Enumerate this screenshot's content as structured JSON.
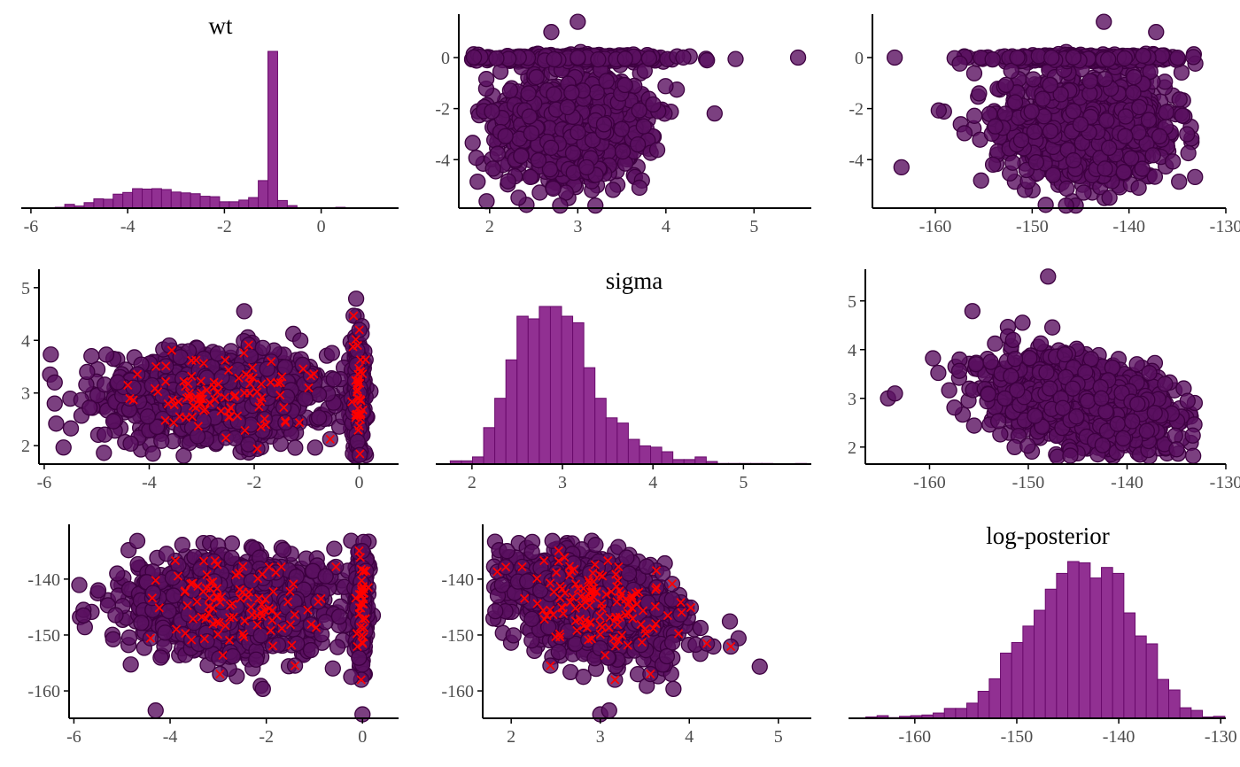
{
  "chart_data": [
    {
      "panel": "wt-hist",
      "row": 0,
      "col": 0,
      "type": "histogram",
      "title": "wt",
      "xlim": [
        -6.2,
        1.6
      ],
      "xticks": [
        -6,
        -4,
        -2,
        0
      ],
      "bin_start": -5.9,
      "bin_width": 0.2,
      "counts": [
        1,
        1,
        2,
        9,
        5,
        13,
        22,
        21,
        33,
        37,
        46,
        45,
        46,
        44,
        38,
        36,
        34,
        28,
        27,
        15,
        15,
        19,
        25,
        65,
        370,
        18,
        6,
        1,
        1,
        1,
        1,
        2
      ]
    },
    {
      "panel": "sigma-vs-wt-scatter",
      "row": 0,
      "col": 1,
      "type": "scatter",
      "x_param": "sigma",
      "y_param": "wt",
      "xlim": [
        1.65,
        5.65
      ],
      "ylim": [
        -5.9,
        1.7
      ],
      "xticks": [
        2,
        3,
        4,
        5
      ],
      "yticks": [
        -4,
        -2,
        0
      ]
    },
    {
      "panel": "logpost-vs-wt-scatter",
      "row": 0,
      "col": 2,
      "type": "scatter",
      "x_param": "log-posterior",
      "y_param": "wt",
      "xlim": [
        -166.5,
        -130
      ],
      "ylim": [
        -5.9,
        1.7
      ],
      "xticks": [
        -160,
        -150,
        -140,
        -130
      ],
      "yticks": [
        -4,
        -2,
        0
      ]
    },
    {
      "panel": "wt-vs-sigma-scatter",
      "row": 1,
      "col": 0,
      "type": "scatter",
      "x_param": "wt",
      "y_param": "sigma",
      "xlim": [
        -6.1,
        0.75
      ],
      "ylim": [
        1.65,
        5.35
      ],
      "xticks": [
        -6,
        -4,
        -2,
        0
      ],
      "yticks": [
        2,
        3,
        4,
        5
      ],
      "divergent_marker": "x"
    },
    {
      "panel": "sigma-hist",
      "row": 1,
      "col": 1,
      "type": "histogram",
      "title": "sigma",
      "xlim": [
        1.6,
        5.75
      ],
      "xticks": [
        2,
        3,
        4,
        5
      ],
      "bin_start": 1.76,
      "bin_width": 0.123,
      "counts": [
        5,
        5,
        11,
        56,
        101,
        160,
        227,
        223,
        242,
        242,
        227,
        217,
        148,
        101,
        71,
        63,
        38,
        28,
        26,
        19,
        7,
        7,
        11,
        4,
        1,
        1,
        1,
        1,
        1,
        0,
        0,
        1
      ]
    },
    {
      "panel": "logpost-vs-sigma-scatter",
      "row": 1,
      "col": 2,
      "type": "scatter",
      "x_param": "log-posterior",
      "y_param": "sigma",
      "xlim": [
        -166.5,
        -130
      ],
      "ylim": [
        1.65,
        5.65
      ],
      "xticks": [
        -160,
        -150,
        -140,
        -130
      ],
      "yticks": [
        2,
        3,
        4,
        5
      ]
    },
    {
      "panel": "wt-vs-logpost-scatter",
      "row": 2,
      "col": 0,
      "type": "scatter",
      "x_param": "wt",
      "y_param": "log-posterior",
      "xlim": [
        -6.1,
        0.75
      ],
      "ylim": [
        -164.9,
        -130.2
      ],
      "xticks": [
        -6,
        -4,
        -2,
        0
      ],
      "yticks": [
        -160,
        -150,
        -140
      ],
      "divergent_marker": "x"
    },
    {
      "panel": "sigma-vs-logpost-scatter",
      "row": 2,
      "col": 1,
      "type": "scatter",
      "x_param": "sigma",
      "y_param": "log-posterior",
      "xlim": [
        1.68,
        5.37
      ],
      "ylim": [
        -164.9,
        -130.2
      ],
      "xticks": [
        2,
        3,
        4,
        5
      ],
      "yticks": [
        -160,
        -150,
        -140
      ],
      "divergent_marker": "x"
    },
    {
      "panel": "logpost-hist",
      "row": 2,
      "col": 2,
      "type": "histogram",
      "title": "log-posterior",
      "xlim": [
        -166.5,
        -129.5
      ],
      "xticks": [
        -160,
        -150,
        -140,
        -130
      ],
      "bin_start": -164.8,
      "bin_width": 1.1,
      "counts": [
        2,
        4,
        1,
        3,
        4,
        5,
        8,
        15,
        15,
        23,
        41,
        60,
        99,
        115,
        140,
        164,
        196,
        220,
        238,
        236,
        213,
        229,
        220,
        160,
        125,
        113,
        59,
        43,
        16,
        12,
        2,
        3
      ]
    }
  ],
  "colors": {
    "hist_fill": "#913092",
    "hist_edge": "#6a0a6c",
    "point_fill": "#5a1060",
    "point_edge": "#3d0040",
    "divergent": "#ff0000",
    "axis": "#000000",
    "tick_text": "#4d4d4d"
  }
}
